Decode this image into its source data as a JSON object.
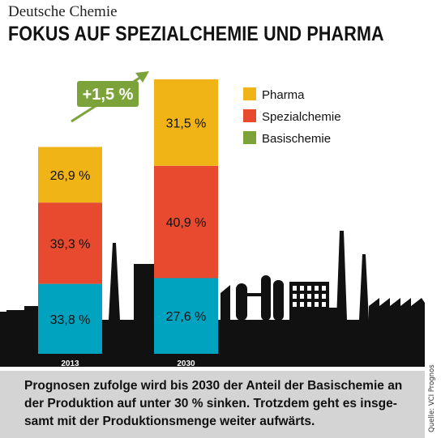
{
  "header": {
    "kicker": "Deutsche Chemie",
    "title": "FOKUS AUF SPEZIALCHEMIE UND PHARMA"
  },
  "chart_data": {
    "type": "bar",
    "stacked": true,
    "categories": [
      "2013",
      "2030"
    ],
    "series": [
      {
        "name": "Basischemie",
        "values": [
          33.8,
          27.6
        ],
        "labels": [
          "33,8 %",
          "27,6 %"
        ],
        "color": "#00a3bf"
      },
      {
        "name": "Spezialchemie",
        "values": [
          39.3,
          40.9
        ],
        "labels": [
          "39,3 %",
          "40,9 %"
        ],
        "color": "#e84a2f"
      },
      {
        "name": "Pharma",
        "values": [
          26.9,
          31.5
        ],
        "labels": [
          "26,9 %",
          "31,5 %"
        ],
        "color": "#f0b416"
      }
    ],
    "legend": {
      "placement": "top-right",
      "entries": [
        {
          "name": "Pharma",
          "color": "#f0b416"
        },
        {
          "name": "Spezialchemie",
          "color": "#e84a2f"
        },
        {
          "name": "Basischemie",
          "color": "#7ba33a"
        }
      ]
    },
    "annotation": {
      "label": "+1,5 %",
      "color": "#7ba33a"
    },
    "title": "FOKUS AUF SPEZIALCHEMIE UND PHARMA",
    "xlabel": "",
    "ylabel": ""
  },
  "caption": "Prognosen zufolge wird bis 2030 der Anteil der Basischemie an der Produktion auf unter 30 % sinken. Trotzdem geht es insge­samt mit der Produktionsmenge weiter aufwärts.",
  "source": "Quelle: VCI Prognos",
  "colors": {
    "skyline": "#111111",
    "caption_bg": "#d4d4d4",
    "bar_label_text": "#111111",
    "year_label_text": "#ffffff"
  }
}
